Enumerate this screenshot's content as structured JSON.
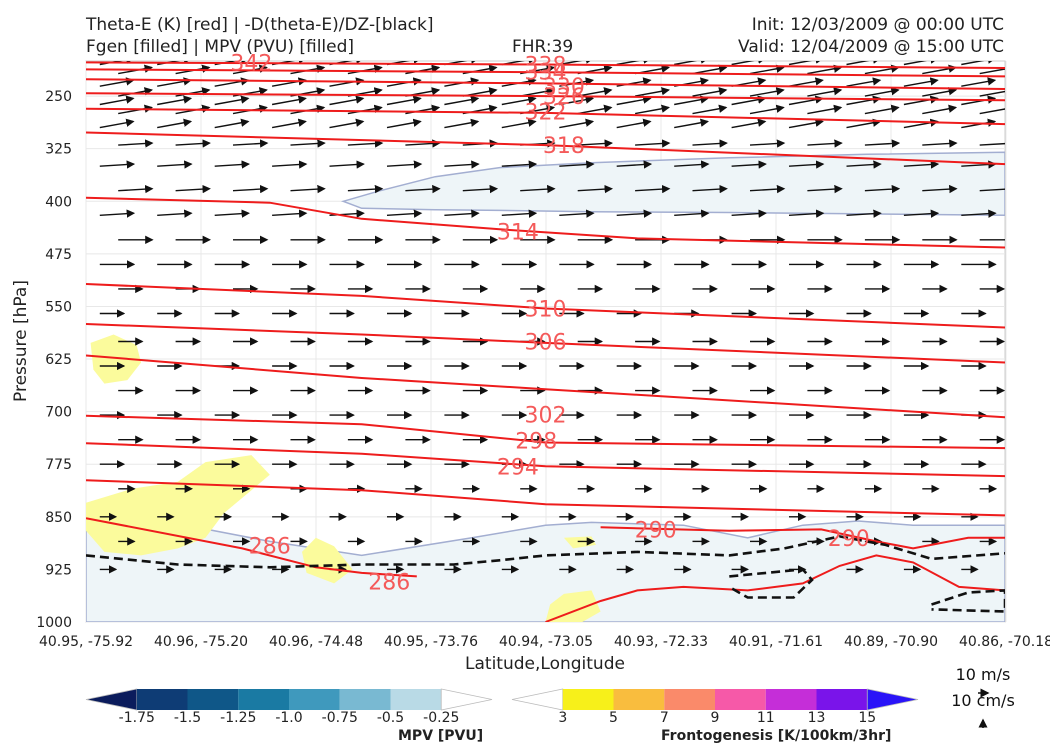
{
  "titles": {
    "left_line1": "Theta-E (K) [red] | -D(theta-E)/DZ-[black]",
    "left_line2": "Fgen [filled] | MPV (PVU) [filled]",
    "center": "FHR:39",
    "right_line1": "Init: 12/03/2009 @ 00:00 UTC",
    "right_line2": "Valid: 12/04/2009 @ 15:00 UTC"
  },
  "chart_data": {
    "type": "cross-section",
    "xlabel": "Latitude,Longitude",
    "ylabel": "Pressure [hPa]",
    "ylim": [
      1000,
      200
    ],
    "x_ticks": [
      "40.95, -75.92",
      "40.96, -75.20",
      "40.96, -74.48",
      "40.95, -73.76",
      "40.94, -73.05",
      "40.93, -72.33",
      "40.91, -71.61",
      "40.89, -70.90",
      "40.86, -70.18"
    ],
    "y_ticks": [
      250,
      325,
      400,
      475,
      550,
      625,
      700,
      775,
      850,
      925,
      1000
    ],
    "theta_e_contour_labels": [
      {
        "value": "342",
        "x": 0.18,
        "p": 202
      },
      {
        "value": "338",
        "x": 0.5,
        "p": 205
      },
      {
        "value": "334",
        "x": 0.5,
        "p": 215
      },
      {
        "value": "330",
        "x": 0.52,
        "p": 236
      },
      {
        "value": "326",
        "x": 0.52,
        "p": 250
      },
      {
        "value": "322",
        "x": 0.5,
        "p": 272
      },
      {
        "value": "318",
        "x": 0.52,
        "p": 320
      },
      {
        "value": "314",
        "x": 0.47,
        "p": 443
      },
      {
        "value": "310",
        "x": 0.5,
        "p": 553
      },
      {
        "value": "306",
        "x": 0.5,
        "p": 600
      },
      {
        "value": "302",
        "x": 0.5,
        "p": 704
      },
      {
        "value": "298",
        "x": 0.49,
        "p": 741
      },
      {
        "value": "294",
        "x": 0.47,
        "p": 778
      },
      {
        "value": "290",
        "x": 0.62,
        "p": 868
      },
      {
        "value": "290",
        "x": 0.83,
        "p": 880
      },
      {
        "value": "286",
        "x": 0.2,
        "p": 891
      },
      {
        "value": "286",
        "x": 0.33,
        "p": 942
      }
    ],
    "colorbars": [
      {
        "label": "MPV [PVU]",
        "ticks": [
          "-1.75",
          "-1.5",
          "-1.25",
          "-1.0",
          "-0.75",
          "-0.5",
          "-0.25"
        ],
        "colors": [
          "#0b1c5c",
          "#0e3c75",
          "#0f5788",
          "#1a7aa3",
          "#3f99bd",
          "#79b9d2",
          "#b9dae6",
          "#ffffff"
        ]
      },
      {
        "label": "Frontogenesis [K/100km/3hr]",
        "ticks": [
          "3",
          "5",
          "7",
          "9",
          "11",
          "13",
          "15"
        ],
        "colors": [
          "#ffffff",
          "#f7f01a",
          "#f9bd3e",
          "#fa8a6a",
          "#f659a8",
          "#c52ed8",
          "#7a14ea",
          "#2a14f8"
        ]
      }
    ],
    "wind_legend": {
      "horizontal": "10 m/s",
      "vertical": "10 cm/s"
    },
    "colors": {
      "theta_e": "#ee1c1c",
      "theta_e_label": "#f45a5a",
      "stability": "#111111",
      "mpv_outline": "#a3aed1",
      "mpv_fill": "#eef5f8",
      "fgen_fill": "#fbfb9c"
    }
  }
}
